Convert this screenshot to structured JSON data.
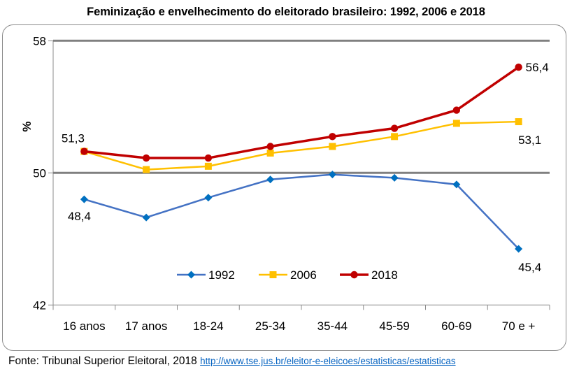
{
  "chart_data": {
    "type": "line",
    "title": "Feminização e envelhecimento do eleitorado brasileiro: 1992, 2006 e 2018",
    "xlabel": "",
    "ylabel": "%",
    "ylim": [
      42,
      58
    ],
    "yticks": [
      58,
      50,
      42
    ],
    "ytick_labels": [
      "58",
      "50",
      "42"
    ],
    "gridlines": [
      58,
      50
    ],
    "grid": true,
    "categories": [
      "16 anos",
      "17 anos",
      "18-24",
      "25-34",
      "35-44",
      "45-59",
      "60-69",
      "70 e +"
    ],
    "series": [
      {
        "name": "1992",
        "color": "#4472C4",
        "marker_color": "#0070C0",
        "marker": "diamond",
        "values": [
          48.4,
          47.3,
          48.5,
          49.6,
          49.9,
          49.7,
          49.3,
          45.4
        ]
      },
      {
        "name": "2006",
        "color": "#FFC000",
        "marker_color": "#FFC000",
        "marker": "square",
        "values": [
          51.3,
          50.2,
          50.4,
          51.2,
          51.6,
          52.2,
          53.0,
          53.1
        ]
      },
      {
        "name": "2018",
        "color": "#C00000",
        "marker_color": "#C00000",
        "marker": "circle",
        "values": [
          51.3,
          50.9,
          50.9,
          51.6,
          52.2,
          52.7,
          53.8,
          56.4
        ]
      }
    ],
    "annotations": [
      {
        "series": "2018",
        "category_index": 0,
        "text": "51,3",
        "position": "above-left"
      },
      {
        "series": "1992",
        "category_index": 0,
        "text": "48,4",
        "position": "below"
      },
      {
        "series": "2018",
        "category_index": 7,
        "text": "56,4",
        "position": "right"
      },
      {
        "series": "2006",
        "category_index": 7,
        "text": "53,1",
        "position": "below-right"
      },
      {
        "series": "1992",
        "category_index": 7,
        "text": "45,4",
        "position": "below-right"
      }
    ],
    "legend": {
      "placement": "bottom-center-inside",
      "entries": [
        "1992",
        "2006",
        "2018"
      ]
    }
  },
  "footer": {
    "source": "Fonte: Tribunal Superior Eleitoral, 2018",
    "link": "http://www.tse.jus.br/eleitor-e-eleicoes/estatisticas/estatisticas"
  }
}
